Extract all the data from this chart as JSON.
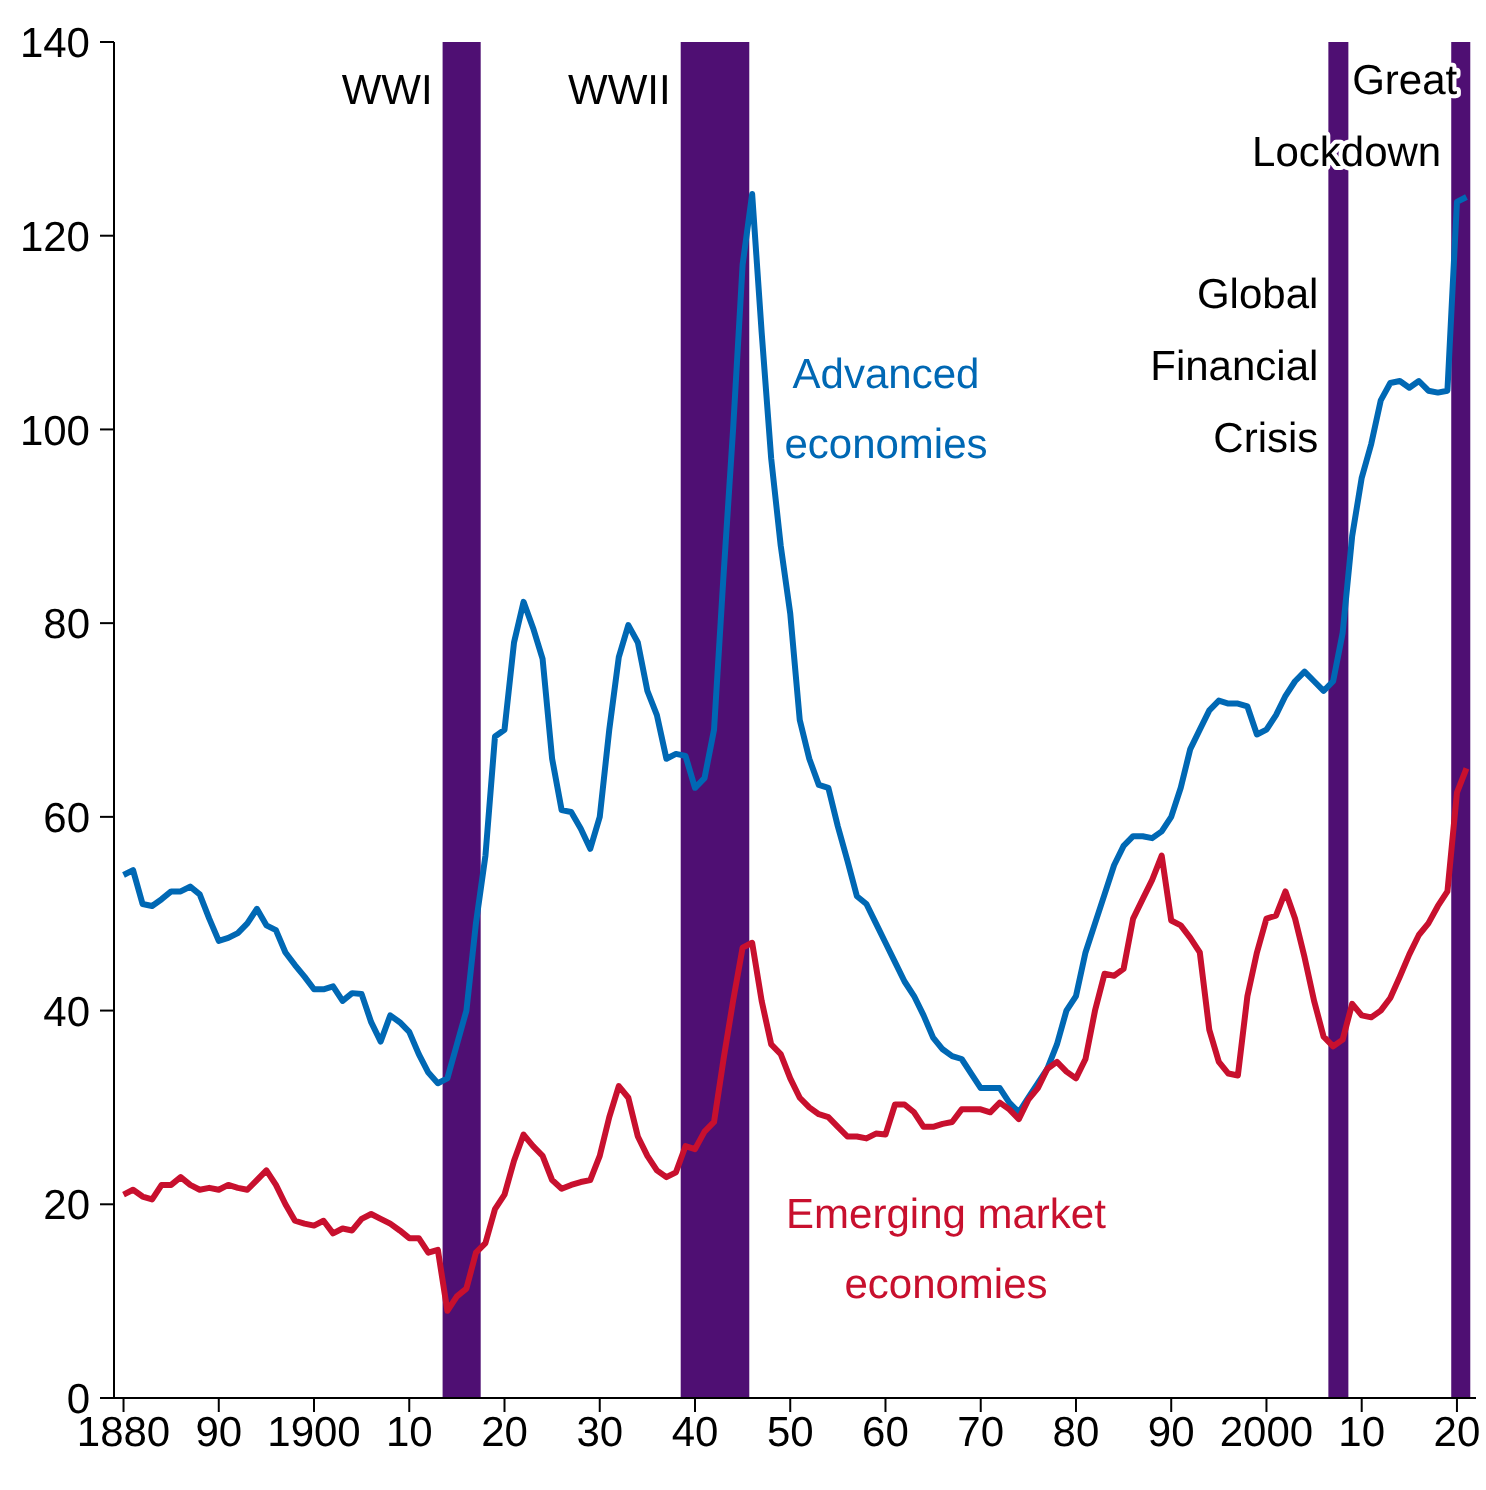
{
  "chart_data": {
    "type": "line",
    "x": [
      1880,
      1881,
      1882,
      1883,
      1884,
      1885,
      1886,
      1887,
      1888,
      1889,
      1890,
      1891,
      1892,
      1893,
      1894,
      1895,
      1896,
      1897,
      1898,
      1899,
      1900,
      1901,
      1902,
      1903,
      1904,
      1905,
      1906,
      1907,
      1908,
      1909,
      1910,
      1911,
      1912,
      1913,
      1914,
      1915,
      1916,
      1917,
      1918,
      1919,
      1920,
      1921,
      1922,
      1923,
      1924,
      1925,
      1926,
      1927,
      1928,
      1929,
      1930,
      1931,
      1932,
      1933,
      1934,
      1935,
      1936,
      1937,
      1938,
      1939,
      1940,
      1941,
      1942,
      1943,
      1944,
      1945,
      1946,
      1947,
      1948,
      1949,
      1950,
      1951,
      1952,
      1953,
      1954,
      1955,
      1956,
      1957,
      1958,
      1959,
      1960,
      1961,
      1962,
      1963,
      1964,
      1965,
      1966,
      1967,
      1968,
      1969,
      1970,
      1971,
      1972,
      1973,
      1974,
      1975,
      1976,
      1977,
      1978,
      1979,
      1980,
      1981,
      1982,
      1983,
      1984,
      1985,
      1986,
      1987,
      1988,
      1989,
      1990,
      1991,
      1992,
      1993,
      1994,
      1995,
      1996,
      1997,
      1998,
      1999,
      2000,
      2001,
      2002,
      2003,
      2004,
      2005,
      2006,
      2007,
      2008,
      2009,
      2010,
      2011,
      2012,
      2013,
      2014,
      2015,
      2016,
      2017,
      2018,
      2019,
      2020,
      2021
    ],
    "series": [
      {
        "name": "Advanced economies",
        "color": "#0068b4",
        "values": [
          54,
          54.5,
          51,
          50.8,
          51.5,
          52.3,
          52.3,
          52.8,
          52,
          49.5,
          47.2,
          47.5,
          48,
          49,
          50.5,
          48.8,
          48.3,
          46,
          44.7,
          43.5,
          42.2,
          42.2,
          42.5,
          41,
          41.8,
          41.7,
          38.8,
          36.8,
          39.5,
          38.8,
          37.8,
          35.5,
          33.6,
          32.5,
          33,
          36.5,
          40,
          49,
          56,
          68.3,
          69,
          78,
          82.2,
          79.5,
          76.3,
          66,
          60.7,
          60.5,
          58.8,
          56.7,
          60,
          69,
          76.5,
          79.8,
          78,
          73,
          70.5,
          66,
          66.5,
          66.3,
          63,
          64,
          69,
          85,
          100,
          117,
          124.3,
          110,
          97,
          88,
          81,
          70,
          66,
          63.3,
          63,
          59,
          55.5,
          51.8,
          51,
          49,
          47,
          45,
          43,
          41.5,
          39.5,
          37.2,
          36,
          35.3,
          35,
          33.5,
          32,
          32,
          32,
          30.5,
          29.5,
          31,
          32.5,
          34,
          36.5,
          40,
          41.5,
          46,
          49,
          52,
          55,
          57,
          58,
          58,
          57.8,
          58.5,
          60,
          63,
          67,
          69,
          71,
          72,
          71.7,
          71.7,
          71.4,
          68.5,
          69,
          70.5,
          72.5,
          74,
          75,
          74,
          73,
          74,
          79,
          89,
          95,
          98.5,
          103,
          104.8,
          105,
          104.3,
          105,
          104,
          103.8,
          104,
          123.5,
          124
        ]
      },
      {
        "name": "Emerging market economies",
        "color": "#c8102e",
        "values": [
          21,
          21.5,
          20.8,
          20.5,
          22,
          22,
          22.8,
          22,
          21.5,
          21.7,
          21.5,
          22,
          21.7,
          21.5,
          22.5,
          23.5,
          22,
          20,
          18.3,
          18,
          17.8,
          18.3,
          17,
          17.5,
          17.3,
          18.5,
          19,
          18.5,
          18,
          17.3,
          16.5,
          16.5,
          15,
          15.3,
          9,
          10.5,
          11.3,
          15,
          16,
          19.5,
          21,
          24.5,
          27.2,
          26,
          25,
          22.5,
          21.6,
          22,
          22.3,
          22.5,
          25,
          29,
          32.2,
          31,
          27,
          25,
          23.5,
          22.8,
          23.3,
          26,
          25.7,
          27.5,
          28.5,
          35,
          41,
          46.5,
          47,
          41,
          36.5,
          35.5,
          33,
          31,
          30,
          29.3,
          29,
          28,
          27,
          27,
          26.8,
          27.3,
          27.2,
          30.3,
          30.3,
          29.5,
          28,
          28,
          28.3,
          28.5,
          29.8,
          29.8,
          29.8,
          29.5,
          30.5,
          29.8,
          28.8,
          30.8,
          32,
          34,
          34.7,
          33.7,
          33,
          35,
          40,
          43.8,
          43.6,
          44.3,
          49.5,
          51.5,
          53.5,
          56,
          49.3,
          48.8,
          47.5,
          46,
          38,
          34.7,
          33.5,
          33.3,
          41.5,
          46,
          49.5,
          49.8,
          52.3,
          49.5,
          45.5,
          41,
          37.3,
          36.3,
          37,
          40.7,
          39.5,
          39.3,
          40,
          41.3,
          43.5,
          45.8,
          47.8,
          49,
          50.8,
          52.3,
          62.5,
          65
        ]
      }
    ],
    "xlim": [
      1879,
      2022
    ],
    "xticks": [
      {
        "value": 1880,
        "label": "1880"
      },
      {
        "value": 1890,
        "label": "90"
      },
      {
        "value": 1900,
        "label": "1900"
      },
      {
        "value": 1910,
        "label": "10"
      },
      {
        "value": 1920,
        "label": "20"
      },
      {
        "value": 1930,
        "label": "30"
      },
      {
        "value": 1940,
        "label": "40"
      },
      {
        "value": 1950,
        "label": "50"
      },
      {
        "value": 1960,
        "label": "60"
      },
      {
        "value": 1970,
        "label": "70"
      },
      {
        "value": 1980,
        "label": "80"
      },
      {
        "value": 1990,
        "label": "90"
      },
      {
        "value": 2000,
        "label": "2000"
      },
      {
        "value": 2010,
        "label": "10"
      },
      {
        "value": 2020,
        "label": "20"
      }
    ],
    "ylim": [
      0,
      140
    ],
    "yticks": [
      0,
      20,
      40,
      60,
      80,
      100,
      120,
      140
    ],
    "bands": [
      {
        "axis": "x",
        "from": 1913.5,
        "to": 1917.5,
        "label": "WWI",
        "color": "#4f0f73"
      },
      {
        "axis": "x",
        "from": 1938.5,
        "to": 1945.7,
        "label": "WWII",
        "color": "#4f0f73"
      },
      {
        "axis": "x",
        "from": 2006.5,
        "to": 2008.6,
        "label": "Global Financial Crisis",
        "color": "#4f0f73"
      },
      {
        "axis": "x",
        "from": 2019.4,
        "to": 2021.4,
        "label": "Great Lockdown",
        "color": "#4f0f73"
      }
    ],
    "grid": false,
    "legend": false,
    "marker": "none",
    "line_style": "solid"
  }
}
